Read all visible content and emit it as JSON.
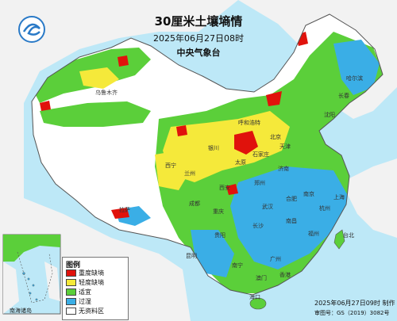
{
  "header": {
    "title": "30厘米土壤墒情",
    "datetime": "2025年06月27日08时",
    "agency": "中央气象台"
  },
  "legend": {
    "title": "图例",
    "items": [
      {
        "label": "重度缺墒",
        "color": "#e0120c"
      },
      {
        "label": "轻度缺墒",
        "color": "#f5e93a"
      },
      {
        "label": "适宜",
        "color": "#5bcf3a"
      },
      {
        "label": "过湿",
        "color": "#3aaee6"
      },
      {
        "label": "无资料区",
        "color": "#ffffff"
      }
    ]
  },
  "inset": {
    "label": "南海诸岛"
  },
  "footer": {
    "issue_time": "2025年06月27日09时 制作",
    "approval": "审图号：GS（2019）3082号"
  },
  "colors": {
    "ocean": "#bde8f7",
    "land_outside": "#f2f2f2",
    "border": "#555555"
  },
  "place_labels": [
    "北京",
    "天津",
    "石家庄",
    "太原",
    "济南",
    "郑州",
    "西安",
    "兰州",
    "西宁",
    "银川",
    "呼和浩特",
    "沈阳",
    "长春",
    "哈尔滨",
    "乌鲁木齐",
    "拉萨",
    "成都",
    "重庆",
    "贵阳",
    "昆明",
    "南宁",
    "广州",
    "福州",
    "杭州",
    "上海",
    "南京",
    "合肥",
    "武汉",
    "长沙",
    "南昌",
    "台北",
    "海口",
    "香港",
    "澳门"
  ]
}
